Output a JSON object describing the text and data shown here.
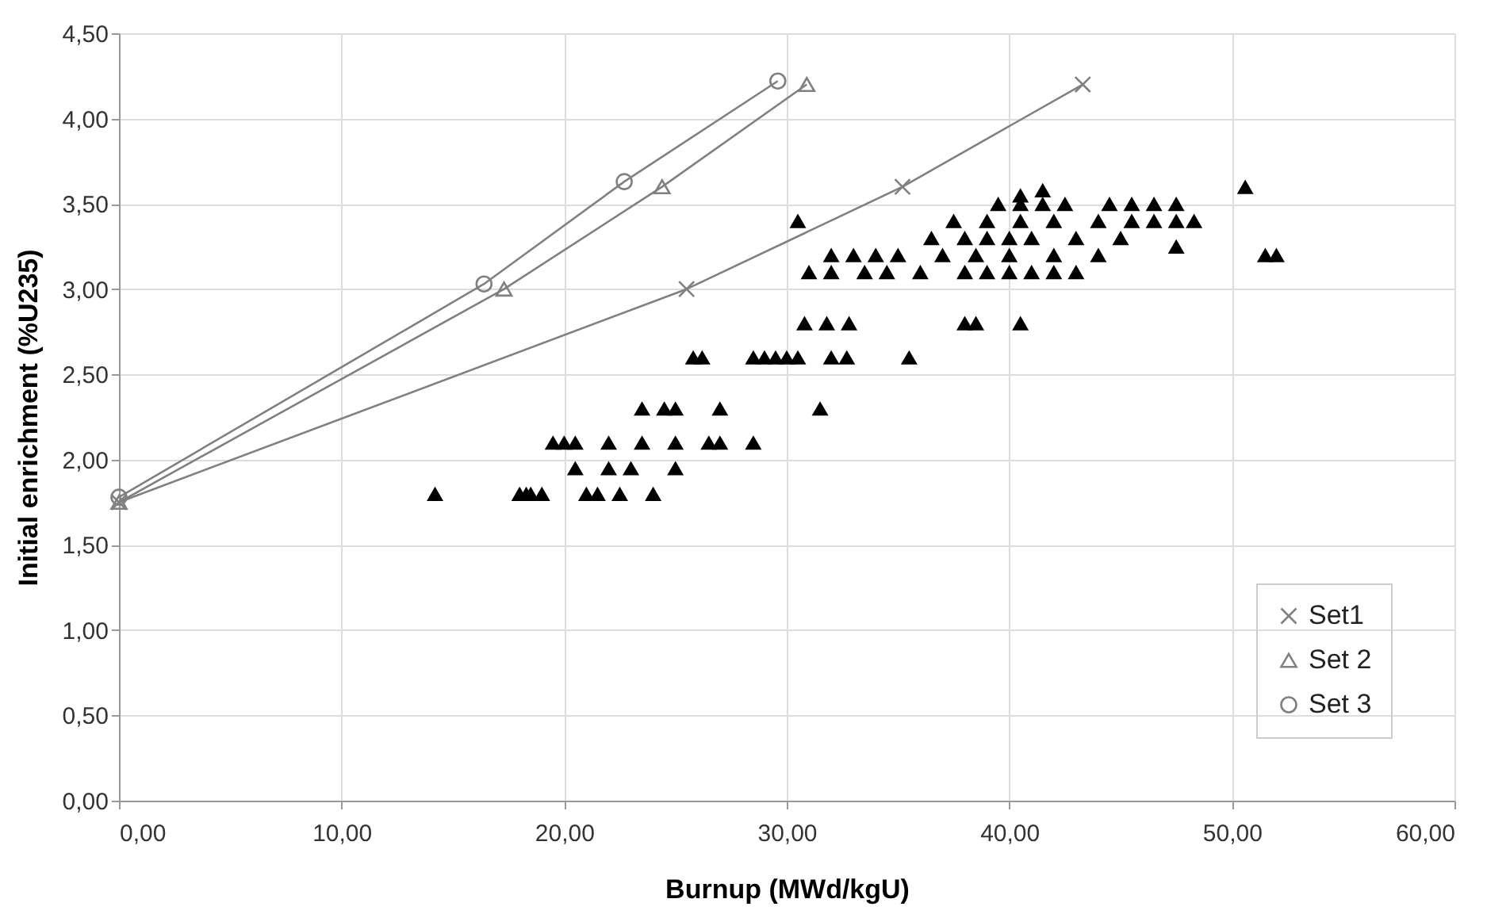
{
  "chart_data": {
    "type": "line",
    "xlabel": "Burnup (MWd/kgU)",
    "ylabel": "Initial enrichment (%U235)",
    "xlim": [
      0,
      60
    ],
    "ylim": [
      0,
      4.5
    ],
    "xticks": [
      {
        "value": 0,
        "label": "0,00"
      },
      {
        "value": 10,
        "label": "10,00"
      },
      {
        "value": 20,
        "label": "20,00"
      },
      {
        "value": 30,
        "label": "30,00"
      },
      {
        "value": 40,
        "label": "40,00"
      },
      {
        "value": 50,
        "label": "50,00"
      },
      {
        "value": 60,
        "label": "60,00"
      }
    ],
    "yticks": [
      {
        "value": 0,
        "label": "0,00"
      },
      {
        "value": 0.5,
        "label": "0,50"
      },
      {
        "value": 1,
        "label": "1,00"
      },
      {
        "value": 1.5,
        "label": "1,50"
      },
      {
        "value": 2,
        "label": "2,00"
      },
      {
        "value": 2.5,
        "label": "2,50"
      },
      {
        "value": 3,
        "label": "3,00"
      },
      {
        "value": 3.5,
        "label": "3,50"
      },
      {
        "value": 4,
        "label": "4,00"
      },
      {
        "value": 4.5,
        "label": "4,50"
      }
    ],
    "grid": true,
    "legend": "bottom right",
    "series": [
      {
        "type": "scatter",
        "color": "#000000",
        "marker": "triangle",
        "x": [
          14.2,
          18,
          18.3,
          18.5,
          19,
          21,
          21.5,
          22.5,
          24,
          20.5,
          22,
          23,
          25,
          19.5,
          20,
          20.5,
          22,
          23.5,
          25,
          26.5,
          27,
          28.5,
          23.5,
          24.5,
          25,
          27,
          31.5,
          25.8,
          26.2,
          28.5,
          29,
          29.5,
          30,
          30.5,
          32,
          32.7,
          35.5,
          30.8,
          31.8,
          32.8,
          38,
          38.5,
          40.5,
          31,
          32,
          33.5,
          34.5,
          36,
          38,
          39,
          40,
          41,
          42,
          43,
          32,
          33,
          34,
          35,
          37,
          38.5,
          40,
          42,
          44,
          47.5,
          51.5,
          52,
          36.5,
          38,
          39,
          40,
          41,
          43,
          45,
          30.5,
          37.5,
          39,
          40.5,
          42,
          44,
          45.5,
          46.5,
          47.5,
          48.3,
          39.5,
          40.5,
          41.5,
          42.5,
          44.5,
          45.5,
          46.5,
          47.5,
          50.6,
          40.5,
          41.5
        ],
        "values": [
          1.8,
          1.8,
          1.8,
          1.8,
          1.8,
          1.8,
          1.8,
          1.8,
          1.8,
          1.95,
          1.95,
          1.95,
          1.95,
          2.1,
          2.1,
          2.1,
          2.1,
          2.1,
          2.1,
          2.1,
          2.1,
          2.1,
          2.3,
          2.3,
          2.3,
          2.3,
          2.3,
          2.6,
          2.6,
          2.6,
          2.6,
          2.6,
          2.6,
          2.6,
          2.6,
          2.6,
          2.6,
          2.8,
          2.8,
          2.8,
          2.8,
          2.8,
          2.8,
          3.1,
          3.1,
          3.1,
          3.1,
          3.1,
          3.1,
          3.1,
          3.1,
          3.1,
          3.1,
          3.1,
          3.2,
          3.2,
          3.2,
          3.2,
          3.2,
          3.2,
          3.2,
          3.2,
          3.2,
          3.25,
          3.2,
          3.2,
          3.3,
          3.3,
          3.3,
          3.3,
          3.3,
          3.3,
          3.3,
          3.4,
          3.4,
          3.4,
          3.4,
          3.4,
          3.4,
          3.4,
          3.4,
          3.4,
          3.4,
          3.5,
          3.5,
          3.5,
          3.5,
          3.5,
          3.5,
          3.5,
          3.5,
          3.6,
          3.55,
          3.58
        ]
      },
      {
        "name": "Set1",
        "color": "#808080",
        "marker": "cross",
        "x": [
          0,
          25.5,
          35.2,
          43.3
        ],
        "values": [
          1.75,
          3.0,
          3.6,
          4.2
        ]
      },
      {
        "name": "Set 2",
        "color": "#808080",
        "marker": "triangle",
        "x": [
          0,
          17.3,
          24.4,
          30.9
        ],
        "values": [
          1.75,
          3.0,
          3.6,
          4.2
        ]
      },
      {
        "name": "Set 3",
        "color": "#808080",
        "marker": "circle",
        "x": [
          0,
          16.4,
          22.7,
          29.6
        ],
        "values": [
          1.78,
          3.03,
          3.63,
          4.22
        ]
      }
    ]
  }
}
